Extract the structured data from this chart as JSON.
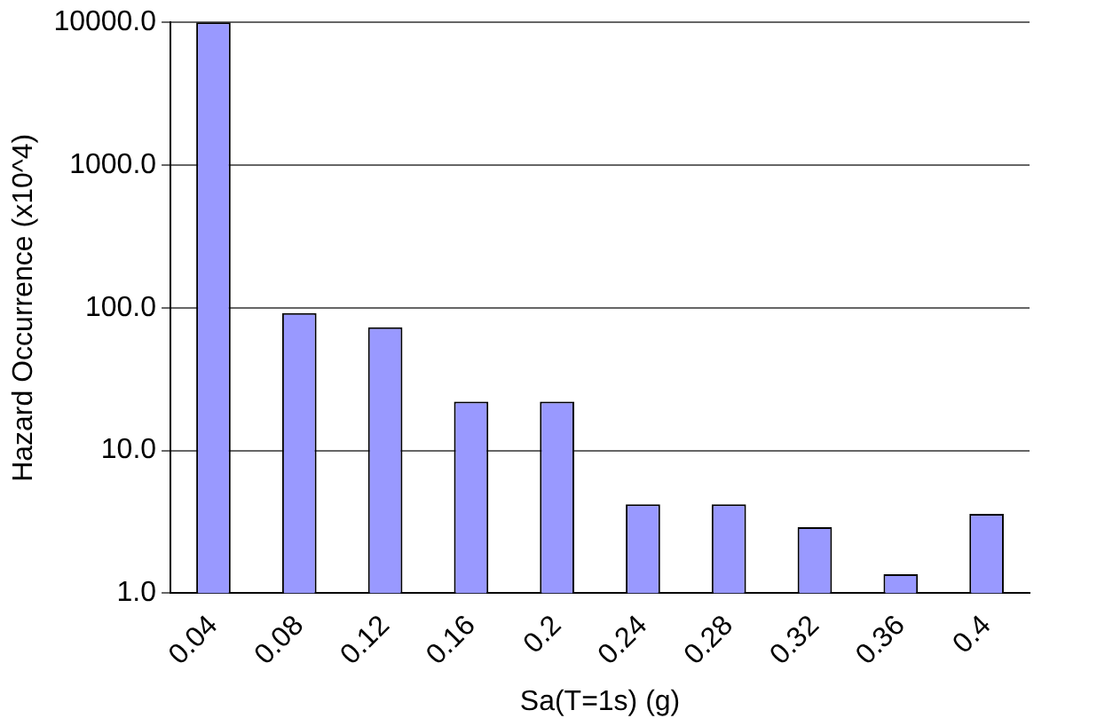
{
  "chart_data": {
    "type": "bar",
    "xlabel": "Sa(T=1s) (g)",
    "ylabel": "Hazard Occurrence (x10^4)",
    "categories": [
      "0.04",
      "0.08",
      "0.12",
      "0.16",
      "0.2",
      "0.24",
      "0.28",
      "0.32",
      "0.36",
      "0.4"
    ],
    "values": [
      10000,
      92,
      73,
      22,
      22,
      4.2,
      4.2,
      2.9,
      1.36,
      3.6
    ],
    "color": "#9999ff",
    "log": "y",
    "ylim": [
      1,
      10000
    ],
    "yticks": [
      {
        "value": 1,
        "label": "1.0"
      },
      {
        "value": 10,
        "label": "10.0"
      },
      {
        "value": 100,
        "label": "100.0"
      },
      {
        "value": 1000,
        "label": "1000.0"
      },
      {
        "value": 10000,
        "label": "10000.0"
      }
    ],
    "grid": "y",
    "legend": false
  }
}
